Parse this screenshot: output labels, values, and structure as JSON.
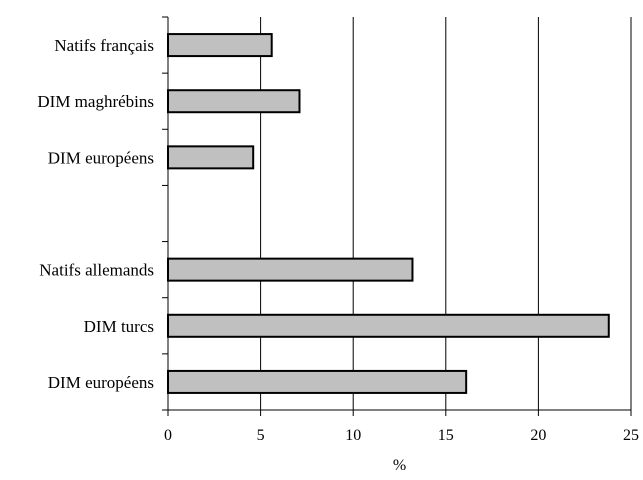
{
  "chart_data": {
    "type": "bar",
    "orientation": "horizontal",
    "categories": [
      "Natifs français",
      "DIM maghrébins",
      "DIM européens",
      "",
      "Natifs allemands",
      "DIM turcs",
      "DIM européens"
    ],
    "values": [
      5.6,
      7.1,
      4.6,
      null,
      13.2,
      23.8,
      16.1
    ],
    "title": "",
    "xlabel": "%",
    "ylabel": "",
    "xlim": [
      0,
      25
    ],
    "xticks": [
      "0",
      "5",
      "10",
      "15",
      "20",
      "25"
    ],
    "grid": "vertical gridlines at x ticks",
    "legend": "none",
    "colors": {
      "bar_fill": "#c0c0c0",
      "bar_stroke": "#000000",
      "grid": "#000000",
      "axis": "#000000"
    }
  }
}
